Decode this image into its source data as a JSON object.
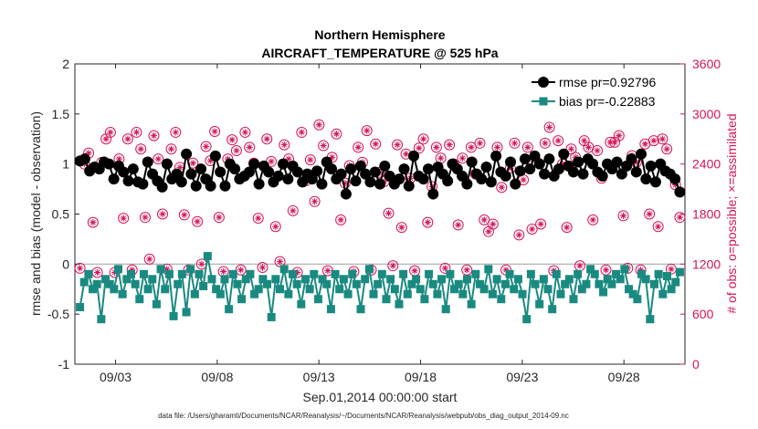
{
  "chart_data": {
    "type": "line",
    "title": "Northern Hemisphere",
    "subtitle": "AIRCRAFT_TEMPERATURE @ 525 hPa",
    "xlabel": "Sep.01,2014 00:00:00 start",
    "ylabel_left": "rmse and bias (model - observation)",
    "ylabel_right": "# of obs: o=possible; ×=assimilated",
    "footnote": "data file: /Users/gharamti/Documents/NCAR/Reanalysis/~/Documents/NCAR/Reanalysis/webpub/obs_diag_output_2014-09.nc",
    "x_ticks": [
      "09/03",
      "09/08",
      "09/13",
      "09/18",
      "09/23",
      "09/28"
    ],
    "x_tick_days": [
      3,
      8,
      13,
      18,
      23,
      28
    ],
    "xlim_days": [
      1,
      31
    ],
    "ylim_left": [
      -1,
      2
    ],
    "yticks_left": [
      "-1",
      "-0.5",
      "0",
      "0.5",
      "1",
      "1.5",
      "2"
    ],
    "ylim_right": [
      0,
      3600
    ],
    "yticks_right": [
      "0",
      "600",
      "1200",
      "1800",
      "2400",
      "3000",
      "3600"
    ],
    "grid": false,
    "legend_position": "top-right",
    "colors": {
      "rmse": "#000000",
      "bias": "#1a8a80",
      "obs": "#d4145a",
      "zero_line": "#aaaaaa"
    },
    "series": [
      {
        "name": "rmse pr=0.92796",
        "axis": "left",
        "marker": "circle",
        "values": [
          1.03,
          1.05,
          0.93,
          0.97,
          0.95,
          1.02,
          1.0,
          0.85,
          0.98,
          0.92,
          0.83,
          0.95,
          0.82,
          0.8,
          1.02,
          0.9,
          0.83,
          0.77,
          1.0,
          0.85,
          0.9,
          0.82,
          1.1,
          0.9,
          0.78,
          0.95,
          0.85,
          0.78,
          1.08,
          0.92,
          0.78,
          1.0,
          0.95,
          0.85,
          0.88,
          0.92,
          1.0,
          0.8,
          0.98,
          0.92,
          0.82,
          0.88,
          1.0,
          0.85,
          0.98,
          0.92,
          0.82,
          0.9,
          0.85,
          0.93,
          0.8,
          1.02,
          0.95,
          0.85,
          0.9,
          0.7,
          0.95,
          0.83,
          0.98,
          0.9,
          0.82,
          0.92,
          0.8,
          0.98,
          0.88,
          0.8,
          0.85,
          0.95,
          0.78,
          1.08,
          0.88,
          0.85,
          0.95,
          0.7,
          0.97,
          0.9,
          0.83,
          1.0,
          0.95,
          0.88,
          0.8,
          1.02,
          0.9,
          0.85,
          0.97,
          0.82,
          1.08,
          0.92,
          0.88,
          1.02,
          0.8,
          0.93,
          1.05,
          0.95,
          1.08,
          1.0,
          0.9,
          1.05,
          0.88,
          0.95,
          1.1,
          0.98,
          0.92,
          1.02,
          0.9,
          1.05,
          1.0,
          0.92,
          0.88,
          1.0,
          0.95,
          1.02,
          0.9,
          0.98,
          1.05,
          0.92,
          1.1,
          0.85,
          0.98,
          0.82,
          1.0,
          0.93,
          0.9,
          0.85,
          0.72
        ]
      },
      {
        "name": "bias pr=-0.22883",
        "axis": "left",
        "marker": "square",
        "values": [
          -0.43,
          -0.18,
          -0.1,
          -0.25,
          -0.2,
          -0.55,
          -0.15,
          -0.2,
          -0.25,
          -0.05,
          -0.3,
          -0.15,
          -0.1,
          -0.2,
          -0.35,
          -0.1,
          -0.25,
          -0.15,
          -0.4,
          -0.05,
          -0.25,
          -0.1,
          -0.52,
          -0.2,
          -0.1,
          -0.48,
          -0.05,
          -0.3,
          -0.1,
          -0.22,
          0.08,
          -0.15,
          -0.25,
          -0.3,
          -0.15,
          -0.45,
          -0.1,
          -0.2,
          -0.35,
          -0.15,
          -0.1,
          -0.3,
          -0.25,
          -0.15,
          -0.2,
          -0.53,
          -0.15,
          -0.25,
          -0.05,
          -0.3,
          -0.1,
          -0.2,
          -0.4,
          -0.15,
          -0.25,
          -0.1,
          -0.35,
          -0.15,
          -0.2,
          -0.45,
          -0.1,
          -0.25,
          -0.15,
          -0.3,
          -0.1,
          -0.2,
          -0.45,
          -0.15,
          -0.05,
          -0.3,
          -0.2,
          -0.1,
          -0.35,
          -0.15,
          -0.25,
          -0.4,
          -0.1,
          -0.3,
          -0.2,
          -0.15,
          -0.25,
          -0.35,
          -0.1,
          -0.2,
          -0.3,
          -0.15,
          -0.45,
          -0.1,
          -0.25,
          -0.2,
          -0.3,
          -0.15,
          -0.4,
          -0.1,
          -0.2,
          -0.25,
          -0.05,
          -0.3,
          -0.15,
          -0.35,
          -0.2,
          -0.1,
          -0.25,
          -0.15,
          -0.3,
          -0.55,
          -0.1,
          -0.2,
          -0.4,
          -0.15,
          -0.25,
          -0.45,
          -0.1,
          -0.3,
          -0.2,
          -0.15,
          -0.35,
          -0.1,
          -0.25,
          -0.2,
          -0.05,
          -0.1,
          -0.2,
          -0.28,
          -0.15,
          -0.2,
          -0.1,
          -0.15,
          -0.05,
          -0.25,
          -0.3,
          -0.35,
          -0.1,
          -0.15,
          -0.55,
          -0.2,
          -0.1,
          -0.3,
          -0.12,
          -0.25,
          -0.18,
          -0.08
        ]
      },
      {
        "name": "obs possible",
        "axis": "right",
        "marker": "circle-open",
        "values": [
          1150,
          2400,
          2530,
          1700,
          1100,
          2420,
          2700,
          2780,
          1100,
          2460,
          1750,
          2700,
          1130,
          2780,
          2580,
          1760,
          1260,
          2740,
          2460,
          1800,
          1140,
          2580,
          2780,
          2360,
          1790,
          1130,
          2410,
          1710,
          1200,
          2610,
          2440,
          2790,
          1760,
          1110,
          2460,
          2690,
          2560,
          1130,
          2780,
          2600,
          2410,
          1750,
          1160,
          2700,
          2430,
          1650,
          1230,
          2630,
          2460,
          1840,
          1100,
          2780,
          2200,
          2450,
          1950,
          2870,
          2620,
          1120,
          2480,
          2760,
          1730,
          2170,
          2380,
          1110,
          2600,
          2420,
          2800,
          1130,
          2640,
          2300,
          2190,
          1810,
          1180,
          2630,
          1640,
          2520,
          2230,
          1120,
          2590,
          2700,
          1700,
          2130,
          2600,
          2470,
          1150,
          2630,
          2400,
          1670,
          2470,
          1130,
          2600,
          2280,
          2650,
          1730,
          1590,
          1680,
          2600,
          2120,
          1130,
          2350,
          2650,
          1550,
          2210,
          2600,
          1620,
          2430,
          1680,
          2650,
          2840,
          1120,
          2680,
          2400,
          1640,
          2580,
          2480,
          1180,
          2680,
          2600,
          1730,
          2560,
          2230,
          1130,
          2660,
          2660,
          2740,
          1780,
          1150,
          2500,
          2420,
          1130,
          2640,
          1800,
          2680,
          1650,
          2700,
          2580,
          1140,
          2150,
          1760
        ]
      }
    ]
  }
}
